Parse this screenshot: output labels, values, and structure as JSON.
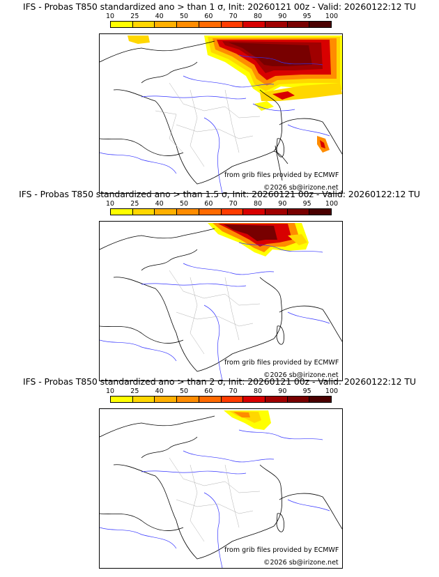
{
  "colors": {
    "legend": [
      "#ffff00",
      "#ffd700",
      "#ffb000",
      "#ff8c00",
      "#ff6a00",
      "#ff3c00",
      "#d80000",
      "#a00000",
      "#780000",
      "#4a0000"
    ],
    "border": "#000000",
    "rivers": "#3333ff",
    "regions": "#b0b0b0",
    "coast": "#000000"
  },
  "legend_ticks": [
    "10",
    "25",
    "40",
    "50",
    "60",
    "70",
    "80",
    "90",
    "95",
    "100"
  ],
  "panels": [
    {
      "title": "IFS - Probas T850  standardized ano > than 1 σ, Init: 20260121 00z - Valid: 20260122:12 TU",
      "credit": "from grib files provided by ECMWF",
      "copyright": "©2026 sb@irizone.net",
      "threshold_sigma": 1
    },
    {
      "title": "IFS - Probas T850  standardized ano > than 1.5 σ, Init: 20260121 00z - Valid: 20260122:12 TU",
      "credit": "from grib files provided by ECMWF",
      "copyright": "©2026 sb@irizone.net",
      "threshold_sigma": 1.5
    },
    {
      "title": "IFS - Probas T850  standardized ano > than 2 σ, Init: 20260121 00z - Valid: 20260122:12 TU",
      "credit": "from grib files provided by ECMWF",
      "copyright": "©2026 sb@irizone.net",
      "threshold_sigma": 2
    }
  ]
}
